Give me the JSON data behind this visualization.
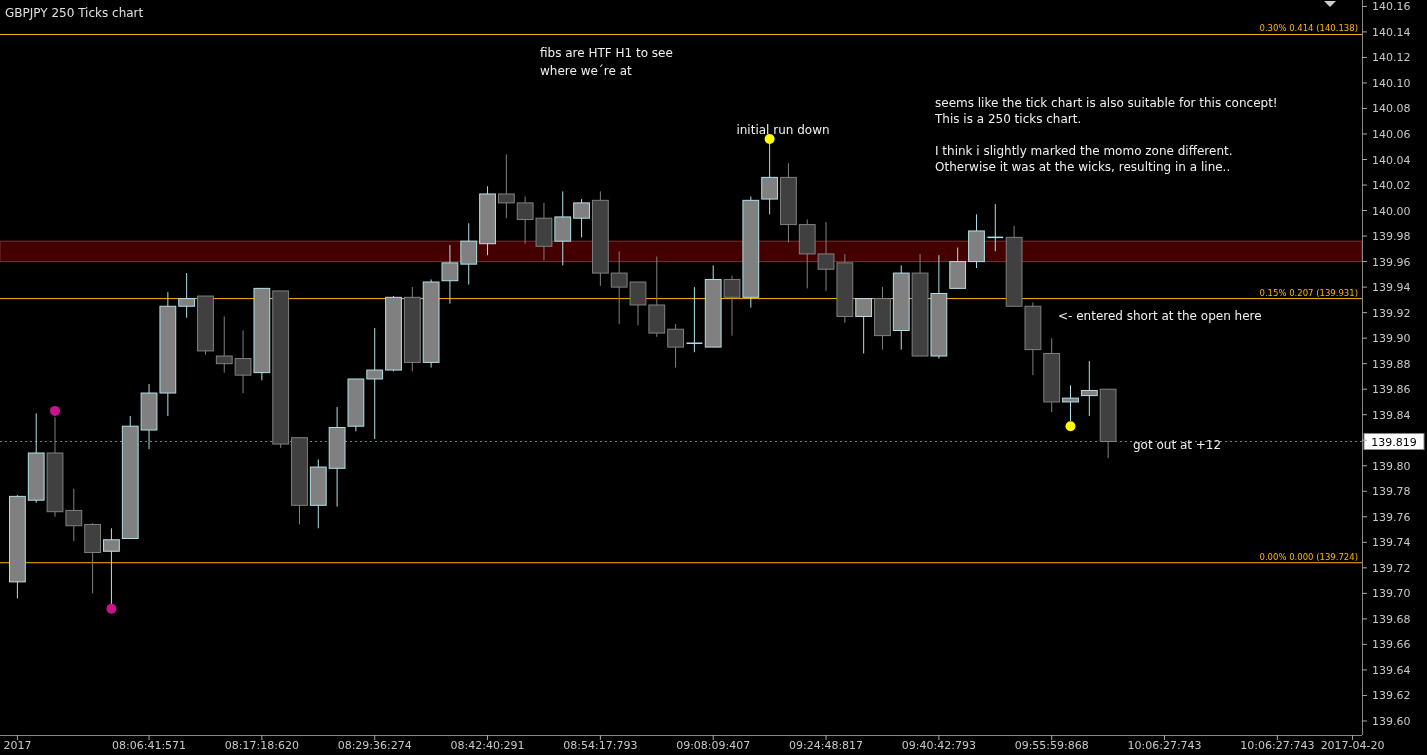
{
  "chart_data": {
    "type": "candlestick",
    "title": "GBPJPY 250 Ticks chart",
    "categories": [
      "2017",
      null,
      null,
      null,
      null,
      null,
      null,
      "08:06:41:571",
      null,
      null,
      null,
      null,
      null,
      "08:17:18:620",
      null,
      null,
      null,
      null,
      null,
      "08:29:36:274",
      null,
      null,
      null,
      null,
      null,
      "08:42:40:291",
      null,
      null,
      null,
      null,
      null,
      "08:54:17:793",
      null,
      null,
      null,
      null,
      null,
      "09:08:09:407",
      null,
      null,
      null,
      null,
      null,
      "09:24:48:817",
      null,
      null,
      null,
      null,
      null,
      "09:40:42:793",
      null,
      null,
      null,
      null,
      null,
      "09:55:59:868",
      null,
      null,
      null,
      null,
      null,
      "10:06:27:743",
      null,
      null,
      null,
      null,
      null,
      "10:06:27:743",
      null,
      null,
      null,
      "2017-04-20"
    ],
    "ohlc": [
      [
        139.709,
        139.777,
        139.696,
        139.776
      ],
      [
        139.773,
        139.841,
        139.771,
        139.81
      ],
      [
        139.81,
        139.838,
        139.76,
        139.764
      ],
      [
        139.765,
        139.782,
        139.741,
        139.753
      ],
      [
        139.754,
        139.755,
        139.7,
        139.732
      ],
      [
        139.733,
        139.751,
        139.689,
        139.742
      ],
      [
        139.743,
        139.839,
        139.743,
        139.831
      ],
      [
        139.828,
        139.864,
        139.813,
        139.857
      ],
      [
        139.857,
        139.936,
        139.839,
        139.925
      ],
      [
        139.925,
        139.951,
        139.916,
        139.931
      ],
      [
        139.933,
        139.933,
        139.887,
        139.89
      ],
      [
        139.886,
        139.917,
        139.873,
        139.88
      ],
      [
        139.884,
        139.906,
        139.857,
        139.871
      ],
      [
        139.873,
        139.939,
        139.867,
        139.939
      ],
      [
        139.937,
        139.937,
        139.814,
        139.817
      ],
      [
        139.822,
        139.822,
        139.754,
        139.769
      ],
      [
        139.769,
        139.805,
        139.751,
        139.799
      ],
      [
        139.798,
        139.846,
        139.768,
        139.83
      ],
      [
        139.831,
        139.868,
        139.827,
        139.868
      ],
      [
        139.868,
        139.908,
        139.821,
        139.875
      ],
      [
        139.875,
        139.933,
        139.874,
        139.932
      ],
      [
        139.932,
        139.94,
        139.874,
        139.881
      ],
      [
        139.881,
        139.946,
        139.877,
        139.944
      ],
      [
        139.945,
        139.973,
        139.927,
        139.959
      ],
      [
        139.958,
        139.99,
        139.942,
        139.976
      ],
      [
        139.974,
        140.019,
        139.965,
        140.013
      ],
      [
        140.013,
        140.044,
        139.994,
        140.006
      ],
      [
        140.006,
        140.011,
        139.974,
        139.993
      ],
      [
        139.994,
        140.006,
        139.961,
        139.972
      ],
      [
        139.976,
        140.015,
        139.957,
        139.995
      ],
      [
        139.994,
        140.009,
        139.979,
        140.006
      ],
      [
        140.008,
        140.015,
        139.941,
        139.951
      ],
      [
        139.951,
        139.968,
        139.911,
        139.94
      ],
      [
        139.944,
        139.944,
        139.91,
        139.926
      ],
      [
        139.926,
        139.964,
        139.901,
        139.904
      ],
      [
        139.907,
        139.911,
        139.877,
        139.893
      ],
      [
        139.896,
        139.94,
        139.889,
        139.896
      ],
      [
        139.893,
        139.957,
        139.893,
        139.946
      ],
      [
        139.946,
        139.949,
        139.902,
        139.932
      ],
      [
        139.932,
        140.011,
        139.924,
        140.008
      ],
      [
        140.009,
        140.053,
        139.997,
        140.026
      ],
      [
        140.026,
        140.037,
        139.975,
        139.989
      ],
      [
        139.989,
        139.993,
        139.939,
        139.966
      ],
      [
        139.966,
        139.991,
        139.937,
        139.954
      ],
      [
        139.959,
        139.966,
        139.912,
        139.917
      ],
      [
        139.917,
        139.931,
        139.888,
        139.931
      ],
      [
        139.931,
        139.94,
        139.891,
        139.902
      ],
      [
        139.906,
        139.957,
        139.891,
        139.951
      ],
      [
        139.951,
        139.966,
        139.886,
        139.886
      ],
      [
        139.886,
        139.965,
        139.884,
        139.935
      ],
      [
        139.939,
        139.971,
        139.939,
        139.96
      ],
      [
        139.96,
        139.997,
        139.955,
        139.984
      ],
      [
        139.979,
        140.005,
        139.968,
        139.979
      ],
      [
        139.979,
        139.988,
        139.925,
        139.925
      ],
      [
        139.925,
        139.928,
        139.871,
        139.891
      ],
      [
        139.888,
        139.9,
        139.842,
        139.85
      ],
      [
        139.85,
        139.863,
        139.835,
        139.853
      ],
      [
        139.855,
        139.882,
        139.839,
        139.859
      ],
      [
        139.86,
        139.86,
        139.806,
        139.819
      ],
      null,
      null,
      null,
      null,
      null,
      null,
      null,
      null,
      null,
      null,
      null,
      null,
      null
    ],
    "series": [
      {
        "type": "scatter",
        "color": "#c8148c",
        "values": [
          null,
          null,
          139.843,
          null,
          null,
          139.688,
          null,
          null,
          null,
          null,
          null,
          null,
          null,
          null,
          null,
          null,
          null,
          null,
          null,
          null,
          null,
          null,
          null,
          null,
          null,
          null,
          null,
          null,
          null,
          null,
          null,
          null,
          null,
          null,
          null,
          null,
          null,
          null,
          null,
          null,
          null,
          null,
          null,
          null,
          null,
          null,
          null,
          null,
          null,
          null,
          null,
          null,
          null,
          null,
          null,
          null,
          null,
          null,
          null,
          null,
          null,
          null,
          null,
          null,
          null,
          null,
          null,
          null,
          null,
          null,
          null,
          null
        ]
      },
      {
        "type": "scatter",
        "color": "#ffff00",
        "values": [
          null,
          null,
          null,
          null,
          null,
          null,
          null,
          null,
          null,
          null,
          null,
          null,
          null,
          null,
          null,
          null,
          null,
          null,
          null,
          null,
          null,
          null,
          null,
          null,
          null,
          null,
          null,
          null,
          null,
          null,
          null,
          null,
          null,
          null,
          null,
          null,
          null,
          null,
          null,
          null,
          140.056,
          null,
          null,
          null,
          null,
          null,
          null,
          null,
          null,
          null,
          null,
          null,
          null,
          null,
          null,
          null,
          139.831,
          null,
          null,
          null,
          null,
          null,
          null,
          null,
          null,
          null,
          null,
          null,
          null,
          null,
          null,
          null
        ]
      }
    ],
    "marker": "circle",
    "grid": false,
    "ylim": [
      139.589,
      140.165
    ],
    "yticks": [
      {
        "value": 139.6,
        "label": "139.60"
      },
      {
        "value": 139.62,
        "label": "139.62"
      },
      {
        "value": 139.64,
        "label": "139.64"
      },
      {
        "value": 139.66,
        "label": "139.66"
      },
      {
        "value": 139.68,
        "label": "139.68"
      },
      {
        "value": 139.7,
        "label": "139.70"
      },
      {
        "value": 139.72,
        "label": "139.72"
      },
      {
        "value": 139.74,
        "label": "139.74"
      },
      {
        "value": 139.76,
        "label": "139.76"
      },
      {
        "value": 139.78,
        "label": "139.78"
      },
      {
        "value": 139.8,
        "label": "139.80"
      },
      {
        "value": 139.82,
        "label": null
      },
      {
        "value": 139.84,
        "label": "139.84"
      },
      {
        "value": 139.86,
        "label": "139.86"
      },
      {
        "value": 139.88,
        "label": "139.88"
      },
      {
        "value": 139.9,
        "label": "139.90"
      },
      {
        "value": 139.92,
        "label": "139.92"
      },
      {
        "value": 139.94,
        "label": "139.94"
      },
      {
        "value": 139.96,
        "label": "139.96"
      },
      {
        "value": 139.98,
        "label": "139.98"
      },
      {
        "value": 140.0,
        "label": "140.00"
      },
      {
        "value": 140.02,
        "label": "140.02"
      },
      {
        "value": 140.04,
        "label": "140.04"
      },
      {
        "value": 140.06,
        "label": "140.06"
      },
      {
        "value": 140.08,
        "label": "140.08"
      },
      {
        "value": 140.1,
        "label": "140.10"
      },
      {
        "value": 140.12,
        "label": "140.12"
      },
      {
        "value": 140.14,
        "label": "140.14"
      },
      {
        "value": 140.16,
        "label": "140.16"
      }
    ],
    "ref_lines": [
      {
        "axis": "y",
        "value": 140.138,
        "label": "0.30% 0.414 (140.138)",
        "color": "#ffb400"
      },
      {
        "axis": "y",
        "value": 139.931,
        "label": "0.15% 0.207 (139.931)",
        "color": "#ffb400"
      },
      {
        "axis": "y",
        "value": 139.724,
        "label": "0.00% 0.000 (139.724)",
        "color": "#ffb400"
      },
      {
        "axis": "y",
        "value": 139.819,
        "label": "139.819",
        "color": "#808080",
        "line_style": "dotted"
      }
    ],
    "bands": [
      {
        "axis": "y",
        "from": 139.96,
        "to": 139.976,
        "color": "#500000"
      }
    ],
    "annotations": [
      "fibs are HTF H1 to see\nwhere we´re at",
      "initial run down",
      "seems like the tick chart is also suitable for this concept!\nThis is a 250 ticks chart.\n\nI think i slightly marked the momo zone different.\nOtherwise it was at the wicks, resulting in a line..",
      "<- entered short at the open here",
      "got out at +12"
    ]
  }
}
